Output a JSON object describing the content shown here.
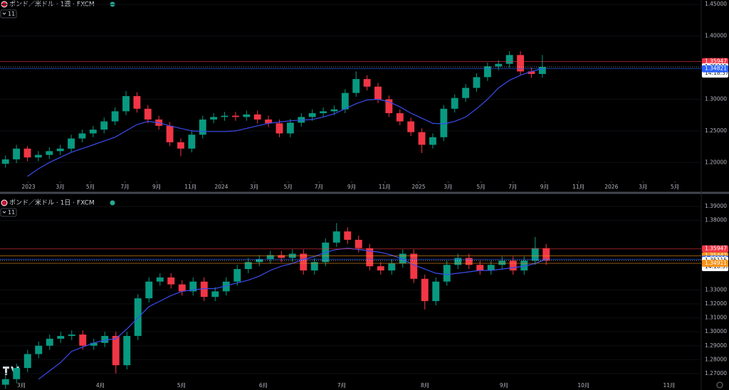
{
  "chart_data": [
    {
      "type": "candlestick",
      "title": "ポンド／米ドル · 1週 · FXCM",
      "badge": "11",
      "open": [
        1.198,
        1.205,
        1.222,
        1.208,
        1.212,
        1.218,
        1.222,
        1.238,
        1.246,
        1.252,
        1.265,
        1.281,
        1.305,
        1.285,
        1.268,
        1.258,
        1.232,
        1.222,
        1.244,
        1.268,
        1.272,
        1.274,
        1.272,
        1.276,
        1.268,
        1.262,
        1.246,
        1.263,
        1.272,
        1.278,
        1.281,
        1.284,
        1.31,
        1.332,
        1.32,
        1.3,
        1.278,
        1.265,
        1.248,
        1.228,
        1.24,
        1.285,
        1.302,
        1.318,
        1.335,
        1.352,
        1.356,
        1.37,
        1.344,
        1.34
      ],
      "high": [
        1.211,
        1.228,
        1.226,
        1.218,
        1.224,
        1.228,
        1.244,
        1.252,
        1.258,
        1.271,
        1.287,
        1.313,
        1.311,
        1.291,
        1.274,
        1.264,
        1.238,
        1.25,
        1.274,
        1.278,
        1.28,
        1.28,
        1.282,
        1.282,
        1.274,
        1.268,
        1.269,
        1.278,
        1.284,
        1.287,
        1.29,
        1.316,
        1.344,
        1.338,
        1.326,
        1.306,
        1.284,
        1.271,
        1.254,
        1.246,
        1.291,
        1.308,
        1.324,
        1.341,
        1.358,
        1.362,
        1.376,
        1.376,
        1.35,
        1.37
      ],
      "low": [
        1.192,
        1.199,
        1.202,
        1.202,
        1.206,
        1.212,
        1.216,
        1.232,
        1.24,
        1.246,
        1.259,
        1.275,
        1.279,
        1.262,
        1.252,
        1.226,
        1.21,
        1.216,
        1.238,
        1.262,
        1.266,
        1.266,
        1.266,
        1.262,
        1.256,
        1.24,
        1.24,
        1.257,
        1.266,
        1.272,
        1.275,
        1.278,
        1.304,
        1.314,
        1.294,
        1.272,
        1.259,
        1.242,
        1.215,
        1.222,
        1.234,
        1.279,
        1.296,
        1.312,
        1.329,
        1.346,
        1.35,
        1.338,
        1.334,
        1.334
      ],
      "close": [
        1.205,
        1.222,
        1.208,
        1.212,
        1.218,
        1.222,
        1.238,
        1.246,
        1.252,
        1.265,
        1.281,
        1.305,
        1.285,
        1.268,
        1.258,
        1.232,
        1.222,
        1.244,
        1.268,
        1.272,
        1.274,
        1.272,
        1.276,
        1.268,
        1.262,
        1.246,
        1.263,
        1.272,
        1.278,
        1.281,
        1.284,
        1.31,
        1.332,
        1.32,
        1.3,
        1.278,
        1.265,
        1.248,
        1.228,
        1.24,
        1.285,
        1.302,
        1.318,
        1.335,
        1.352,
        1.356,
        1.37,
        1.344,
        1.34,
        1.35115
      ],
      "ma": {
        "color": "#3b4cf0",
        "values": [
          null,
          null,
          1.178,
          1.19,
          1.2,
          1.208,
          1.216,
          1.222,
          1.228,
          1.234,
          1.24,
          1.25,
          1.26,
          1.265,
          1.263,
          1.258,
          1.254,
          1.25,
          1.249,
          1.249,
          1.249,
          1.25,
          1.254,
          1.258,
          1.262,
          1.264,
          1.266,
          1.267,
          1.268,
          1.272,
          1.277,
          1.285,
          1.293,
          1.299,
          1.3,
          1.296,
          1.288,
          1.278,
          1.27,
          1.262,
          1.261,
          1.265,
          1.272,
          1.285,
          1.3,
          1.318,
          1.33,
          1.338,
          1.344,
          1.34821
        ]
      },
      "up_color": "#089981",
      "down_color": "#f23645",
      "xlim": [
        0,
        64
      ],
      "ylim": [
        1.17,
        1.457
      ],
      "yticks": [
        {
          "value": 1.45,
          "label": "1.45000"
        },
        {
          "value": 1.4,
          "label": "1.40000"
        },
        {
          "value": 1.3,
          "label": "1.30000"
        },
        {
          "value": 1.25,
          "label": "1.25000"
        },
        {
          "value": 1.2,
          "label": "1.20000"
        }
      ],
      "xticks": [
        {
          "value": 2.6,
          "label": "2023"
        },
        {
          "value": 5.5,
          "label": "3月"
        },
        {
          "value": 8.25,
          "label": "5月"
        },
        {
          "value": 11.4,
          "label": "7月"
        },
        {
          "value": 14.3,
          "label": "9月"
        },
        {
          "value": 17.4,
          "label": "11月"
        },
        {
          "value": 20.2,
          "label": "2024"
        },
        {
          "value": 23.2,
          "label": "3月"
        },
        {
          "value": 26.3,
          "label": "5月"
        },
        {
          "value": 29.1,
          "label": "7月"
        },
        {
          "value": 32.1,
          "label": "9月"
        },
        {
          "value": 35.1,
          "label": "11月"
        },
        {
          "value": 38.2,
          "label": "2025"
        },
        {
          "value": 40.9,
          "label": "3月"
        },
        {
          "value": 43.9,
          "label": "5月"
        },
        {
          "value": 46.8,
          "label": "7月"
        },
        {
          "value": 49.7,
          "label": "9月"
        },
        {
          "value": 52.8,
          "label": "11月"
        },
        {
          "value": 55.8,
          "label": "2026"
        },
        {
          "value": 58.7,
          "label": "3月"
        },
        {
          "value": 61.6,
          "label": "5月"
        }
      ],
      "price_lines": [
        {
          "price": 1.35947,
          "color": "#f23645"
        },
        {
          "price": 1.35115,
          "color": "#ffffff",
          "countdown": "14:18:37"
        },
        {
          "price": 1.34821,
          "color": "#2962ff"
        }
      ]
    },
    {
      "type": "candlestick",
      "title": "ポンド／米ドル · 1日 · FXCM",
      "badge": "11",
      "open": [
        1.262,
        1.266,
        1.274,
        1.284,
        1.29,
        1.295,
        1.297,
        1.298,
        1.29,
        1.292,
        1.297,
        1.276,
        1.297,
        1.324,
        1.336,
        1.339,
        1.334,
        1.329,
        1.336,
        1.325,
        1.329,
        1.336,
        1.345,
        1.35,
        1.352,
        1.355,
        1.353,
        1.356,
        1.344,
        1.35,
        1.364,
        1.372,
        1.366,
        1.36,
        1.347,
        1.344,
        1.349,
        1.356,
        1.338,
        1.322,
        1.336,
        1.348,
        1.353,
        1.348,
        1.344,
        1.348,
        1.351,
        1.344,
        1.351,
        1.36
      ],
      "high": [
        1.269,
        1.277,
        1.287,
        1.293,
        1.298,
        1.3,
        1.301,
        1.301,
        1.295,
        1.3,
        1.3,
        1.3,
        1.327,
        1.339,
        1.342,
        1.342,
        1.337,
        1.339,
        1.339,
        1.332,
        1.339,
        1.348,
        1.353,
        1.355,
        1.358,
        1.358,
        1.359,
        1.359,
        1.353,
        1.367,
        1.378,
        1.375,
        1.369,
        1.363,
        1.35,
        1.352,
        1.359,
        1.359,
        1.341,
        1.339,
        1.351,
        1.356,
        1.356,
        1.351,
        1.351,
        1.354,
        1.354,
        1.354,
        1.368,
        1.363
      ],
      "low": [
        1.259,
        1.263,
        1.271,
        1.281,
        1.287,
        1.292,
        1.294,
        1.287,
        1.287,
        1.289,
        1.27,
        1.273,
        1.294,
        1.321,
        1.333,
        1.331,
        1.326,
        1.326,
        1.322,
        1.322,
        1.326,
        1.333,
        1.342,
        1.347,
        1.349,
        1.35,
        1.35,
        1.341,
        1.341,
        1.347,
        1.361,
        1.363,
        1.357,
        1.344,
        1.341,
        1.341,
        1.346,
        1.335,
        1.316,
        1.319,
        1.333,
        1.345,
        1.345,
        1.341,
        1.341,
        1.345,
        1.341,
        1.341,
        1.348,
        1.348
      ],
      "close": [
        1.266,
        1.274,
        1.284,
        1.29,
        1.295,
        1.297,
        1.298,
        1.29,
        1.292,
        1.297,
        1.276,
        1.297,
        1.324,
        1.336,
        1.339,
        1.334,
        1.329,
        1.336,
        1.325,
        1.329,
        1.336,
        1.345,
        1.35,
        1.352,
        1.355,
        1.353,
        1.356,
        1.344,
        1.35,
        1.364,
        1.372,
        1.366,
        1.36,
        1.347,
        1.344,
        1.349,
        1.356,
        1.338,
        1.322,
        1.336,
        1.348,
        1.353,
        1.348,
        1.344,
        1.348,
        1.351,
        1.344,
        1.351,
        1.36,
        1.35115
      ],
      "ma": {
        "color": "#3b4cf0",
        "values": [
          null,
          null,
          null,
          1.266,
          1.272,
          1.278,
          1.286,
          1.289,
          1.292,
          1.294,
          1.295,
          1.302,
          1.31,
          1.318,
          1.322,
          1.326,
          1.329,
          1.33,
          1.331,
          1.331,
          1.333,
          1.335,
          1.337,
          1.34,
          1.344,
          1.347,
          1.349,
          1.352,
          1.354,
          1.357,
          1.359,
          1.36,
          1.359,
          1.358,
          1.357,
          1.355,
          1.352,
          1.348,
          1.345,
          1.342,
          1.341,
          1.342,
          1.343,
          1.344,
          1.344,
          1.345,
          1.346,
          1.347,
          1.349,
          1.35207
        ]
      },
      "up_color": "#089981",
      "down_color": "#f23645",
      "xlim": [
        0,
        63.55
      ],
      "ylim": [
        1.2623,
        1.3961
      ],
      "yticks": [
        {
          "value": 1.39,
          "label": "1.39000"
        },
        {
          "value": 1.38,
          "label": "1.38000"
        },
        {
          "value": 1.33,
          "label": "1.33000"
        },
        {
          "value": 1.32,
          "label": "1.32000"
        },
        {
          "value": 1.31,
          "label": "1.31000"
        },
        {
          "value": 1.3,
          "label": "1.30000"
        },
        {
          "value": 1.29,
          "label": "1.29000"
        },
        {
          "value": 1.28,
          "label": "1.28000"
        },
        {
          "value": 1.27,
          "label": "1.27000"
        }
      ],
      "xticks": [
        {
          "value": 1.94,
          "label": "3月"
        },
        {
          "value": 9.1,
          "label": "4月"
        },
        {
          "value": 16.45,
          "label": "5月"
        },
        {
          "value": 23.87,
          "label": "6月"
        },
        {
          "value": 30.97,
          "label": "7月"
        },
        {
          "value": 38.52,
          "label": "8月"
        },
        {
          "value": 45.68,
          "label": "9月"
        },
        {
          "value": 52.9,
          "label": "10月"
        },
        {
          "value": 60.65,
          "label": "11月"
        }
      ],
      "price_lines": [
        {
          "price": 1.35947,
          "color": "#f23645"
        },
        {
          "price": 1.35442,
          "color": "#f7931a"
        },
        {
          "price": 1.35207,
          "color": "#2962ff"
        },
        {
          "price": 1.35115,
          "color": "#ffffff",
          "countdown": "14:18:37"
        },
        {
          "price": 1.34911,
          "color": "#f7931a"
        }
      ]
    }
  ]
}
